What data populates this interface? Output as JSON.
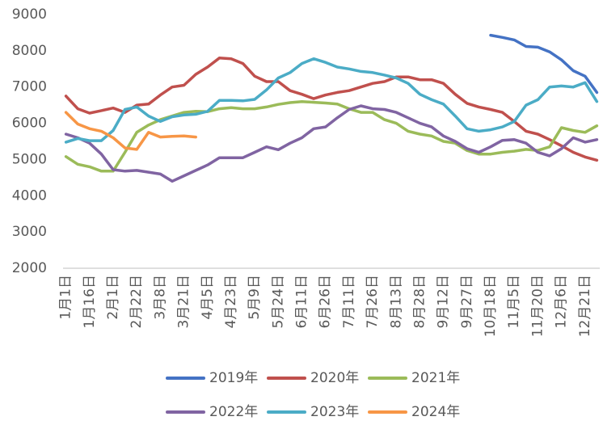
{
  "chart_data": {
    "type": "line",
    "categories": [
      "1月1日",
      null,
      "1月16日",
      null,
      "2月1日",
      null,
      "2月22日",
      null,
      "3月8日",
      null,
      "3月21日",
      null,
      "4月5日",
      null,
      "4月23日",
      null,
      "5月9日",
      null,
      "5月24日",
      null,
      "6月11日",
      null,
      "6月26日",
      null,
      "7月11日",
      null,
      "7月26日",
      null,
      "8月13日",
      null,
      "8月28日",
      null,
      "9月12日",
      null,
      "9月27日",
      null,
      "10月18日",
      null,
      "11月5日",
      null,
      "11月20日",
      null,
      "12月6日",
      null,
      "12月21日",
      null
    ],
    "ylim": [
      2000,
      9000
    ],
    "yticks": [
      2000,
      3000,
      4000,
      5000,
      6000,
      7000,
      8000,
      9000
    ],
    "grid": false,
    "series": [
      {
        "name": "2019年",
        "color": "#4472c4",
        "values": [
          null,
          null,
          null,
          null,
          null,
          null,
          null,
          null,
          null,
          null,
          null,
          null,
          null,
          null,
          null,
          null,
          null,
          null,
          null,
          null,
          null,
          null,
          null,
          null,
          null,
          null,
          null,
          null,
          null,
          null,
          null,
          null,
          null,
          null,
          null,
          null,
          8430,
          8370,
          8300,
          8120,
          8100,
          7970,
          7750,
          7450,
          7300,
          6850
        ]
      },
      {
        "name": "2020年",
        "color": "#c0504d",
        "values": [
          6750,
          6400,
          6280,
          6350,
          6420,
          6300,
          6500,
          6530,
          6780,
          7000,
          7050,
          7350,
          7550,
          7800,
          7780,
          7650,
          7300,
          7150,
          7150,
          6900,
          6800,
          6680,
          6780,
          6850,
          6900,
          7000,
          7100,
          7150,
          7280,
          7280,
          7200,
          7200,
          7100,
          6800,
          6550,
          6450,
          6380,
          6300,
          6050,
          5780,
          5700,
          5550,
          5380,
          5200,
          5070,
          4980
        ]
      },
      {
        "name": "2021年",
        "color": "#9bbb59",
        "values": [
          5080,
          4870,
          4800,
          4680,
          4680,
          5200,
          5750,
          5950,
          6100,
          6200,
          6300,
          6330,
          6320,
          6400,
          6430,
          6400,
          6400,
          6450,
          6520,
          6570,
          6600,
          6580,
          6560,
          6530,
          6400,
          6300,
          6300,
          6100,
          6000,
          5780,
          5700,
          5650,
          5500,
          5450,
          5250,
          5150,
          5150,
          5200,
          5230,
          5280,
          5250,
          5350,
          5880,
          5800,
          5750,
          5930
        ]
      },
      {
        "name": "2022年",
        "color": "#8064a2",
        "values": [
          5700,
          5600,
          5450,
          5150,
          4720,
          4680,
          4700,
          4650,
          4600,
          4400,
          4550,
          4700,
          4850,
          5050,
          5050,
          5050,
          5200,
          5350,
          5270,
          5450,
          5600,
          5850,
          5900,
          6150,
          6380,
          6480,
          6400,
          6380,
          6300,
          6150,
          6000,
          5900,
          5650,
          5500,
          5300,
          5200,
          5350,
          5530,
          5550,
          5450,
          5200,
          5100,
          5300,
          5600,
          5480,
          5550
        ]
      },
      {
        "name": "2023年",
        "color": "#4bacc6",
        "values": [
          5480,
          5580,
          5520,
          5520,
          5800,
          6380,
          6450,
          6200,
          6050,
          6180,
          6230,
          6250,
          6330,
          6630,
          6630,
          6620,
          6660,
          6920,
          7250,
          7400,
          7650,
          7780,
          7680,
          7550,
          7500,
          7430,
          7400,
          7330,
          7250,
          7100,
          6800,
          6650,
          6530,
          6200,
          5850,
          5780,
          5820,
          5900,
          6050,
          6500,
          6650,
          7000,
          7030,
          7000,
          7120,
          6600
        ]
      },
      {
        "name": "2024年",
        "color": "#f79646",
        "values": [
          6300,
          5980,
          5850,
          5780,
          5600,
          5320,
          5280,
          5750,
          5620,
          5640,
          5650,
          5620,
          null,
          null,
          null,
          null,
          null,
          null,
          null,
          null,
          null,
          null,
          null,
          null,
          null,
          null,
          null,
          null,
          null,
          null,
          null,
          null,
          null,
          null,
          null,
          null,
          null,
          null,
          null,
          null,
          null,
          null,
          null,
          null,
          null,
          null
        ]
      }
    ]
  }
}
